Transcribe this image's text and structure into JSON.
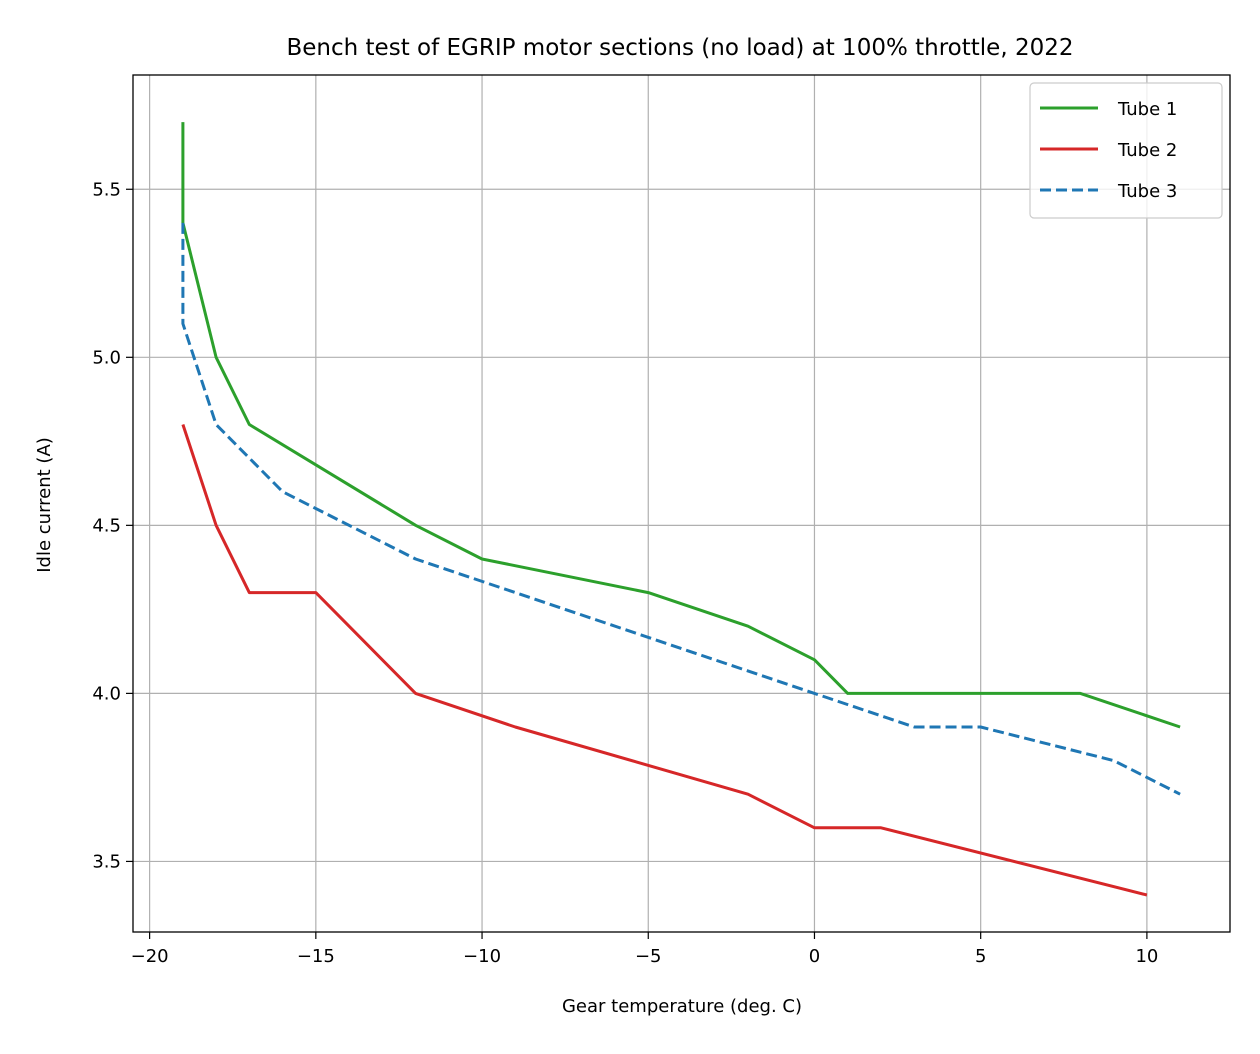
{
  "chart_data": {
    "type": "line",
    "title": "Bench test of EGRIP motor sections (no load) at 100% throttle, 2022",
    "xlabel": "Gear temperature (deg. C)",
    "ylabel": "Idle current (A)",
    "xlim": [
      -20.5,
      12.5
    ],
    "ylim": [
      3.29,
      5.84
    ],
    "xticks": [
      -20,
      -15,
      -10,
      -5,
      0,
      5,
      10
    ],
    "xtick_labels": [
      "−20",
      "−15",
      "−10",
      "−5",
      "0",
      "5",
      "10"
    ],
    "yticks": [
      3.5,
      4.0,
      4.5,
      5.0,
      5.5
    ],
    "ytick_labels": [
      "3.5",
      "4.0",
      "4.5",
      "5.0",
      "5.5"
    ],
    "grid": true,
    "legend_position": "top-right",
    "series": [
      {
        "name": "Tube 1",
        "color": "#2ca02c",
        "style": "solid",
        "x": [
          -19,
          -19,
          -18,
          -17,
          -12,
          -10,
          -5,
          -2,
          0,
          1,
          8,
          11
        ],
        "y": [
          5.7,
          5.4,
          5.0,
          4.8,
          4.5,
          4.4,
          4.3,
          4.2,
          4.1,
          4.0,
          4.0,
          3.9
        ]
      },
      {
        "name": "Tube 2",
        "color": "#d62728",
        "style": "solid",
        "x": [
          -19,
          -18,
          -17,
          -15,
          -12,
          -9,
          -2,
          0,
          2,
          10
        ],
        "y": [
          4.8,
          4.5,
          4.3,
          4.3,
          4.0,
          3.9,
          3.7,
          3.6,
          3.6,
          3.4
        ]
      },
      {
        "name": "Tube 3",
        "color": "#1f77b4",
        "style": "dashed",
        "x": [
          -19,
          -19,
          -18,
          -16,
          -12,
          0,
          3,
          5,
          9,
          11
        ],
        "y": [
          5.4,
          5.1,
          4.8,
          4.6,
          4.4,
          4.0,
          3.9,
          3.9,
          3.8,
          3.7
        ]
      }
    ]
  }
}
